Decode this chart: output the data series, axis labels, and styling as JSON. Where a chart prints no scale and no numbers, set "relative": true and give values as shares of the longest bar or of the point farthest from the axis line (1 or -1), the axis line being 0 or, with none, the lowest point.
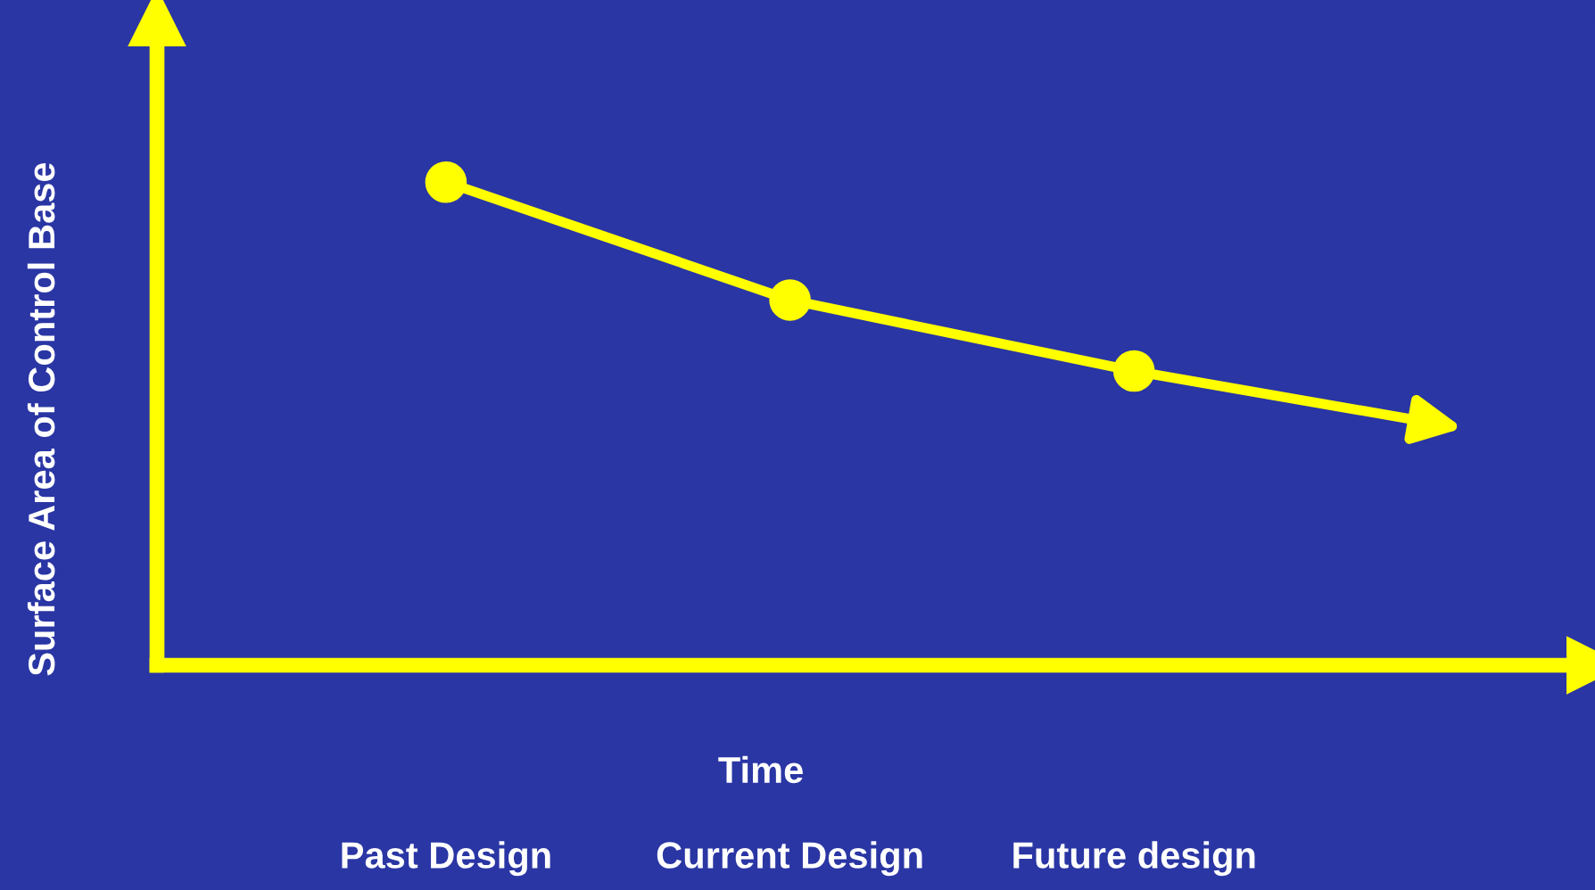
{
  "chart_data": {
    "type": "line",
    "relative": true,
    "xlabel": "Time",
    "ylabel": "Surface Area of Control Base",
    "categories": [
      "Past Design",
      "Current Design",
      "Future design"
    ],
    "series": [
      {
        "color": "#ffff00",
        "values": [
          1,
          0.756,
          0.609
        ]
      }
    ],
    "marker": "circle",
    "line_style": "solid",
    "grid": false,
    "legend": false
  }
}
